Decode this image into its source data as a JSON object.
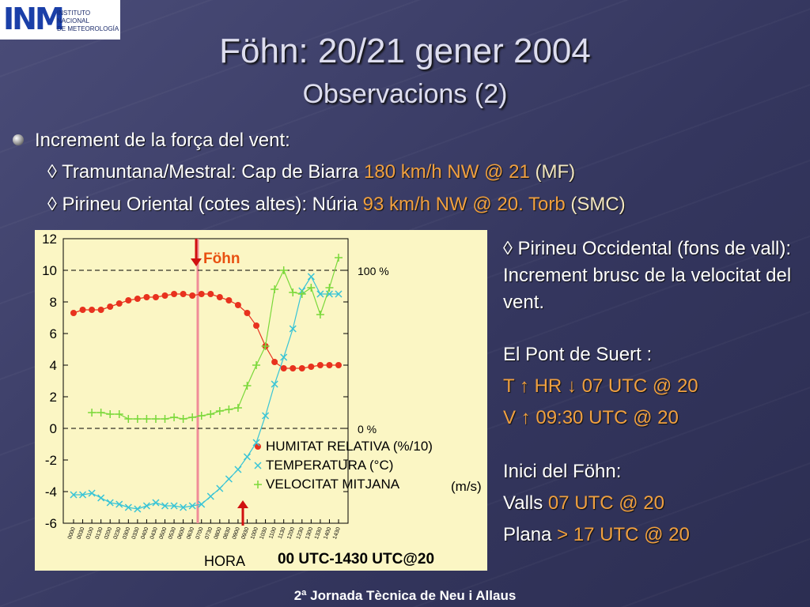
{
  "header": {
    "logo_mark": "INM",
    "logo_text": [
      "INSTITUTO",
      "NACIONAL",
      "DE METEOROLOGÍA"
    ],
    "title": "Föhn: 20/21 gener 2004",
    "subtitle": "Observacions (2)"
  },
  "bullets": {
    "main": "Increment de la força del vent:",
    "items": [
      {
        "lead": "◊ Tramuntana/Mestral: Cap de Biarra ",
        "highlight": "180 km/h NW @ 21",
        "tail": " (MF)"
      },
      {
        "lead": "◊ Pirineu Oriental (cotes altes): Núria ",
        "highlight": "93 km/h NW @ 20. Torb",
        "tail": " (SMC)"
      }
    ]
  },
  "side": {
    "paragraph": "◊ Pirineu Occidental (fons de vall): Increment brusc de la velocitat del vent.",
    "station": "El Pont de Suert :",
    "line1": "T ↑ HR ↓ 07 UTC @ 20",
    "line2": "V ↑ 09:30 UTC @ 20",
    "onset": "Inici del Föhn:",
    "valls_label": "Valls ",
    "valls_value": "07 UTC @ 20",
    "plana_label": "Plana ",
    "plana_value": "> 17 UTC @ 20"
  },
  "footer": "2ª Jornada Tècnica de Neu i Allaus",
  "chart_data": {
    "type": "line",
    "x_label": "HORA",
    "caption": "00 UTC-1430 UTC@20",
    "marker_label": "Föhn",
    "units_note": "(m/s)",
    "categories": [
      "0000",
      "0030",
      "0100",
      "0130",
      "0200",
      "0230",
      "0300",
      "0330",
      "0400",
      "0430",
      "0500",
      "0530",
      "0600",
      "0630",
      "0700",
      "0730",
      "0800",
      "0830",
      "0900",
      "0930",
      "1000",
      "1030",
      "1100",
      "1130",
      "1200",
      "1230",
      "1300",
      "1330",
      "1400",
      "1430"
    ],
    "ylim": [
      -6,
      12
    ],
    "yticks": [
      -6,
      -4,
      -2,
      0,
      2,
      4,
      6,
      8,
      10,
      12
    ],
    "reference_lines": [
      {
        "value": 10,
        "label": "100 %"
      },
      {
        "value": 0,
        "label": "0 %"
      }
    ],
    "series": [
      {
        "name": "HUMITAT RELATIVA (%/10)",
        "color": "#e8321e",
        "marker": "circle",
        "values": [
          7.3,
          7.5,
          7.5,
          7.5,
          7.7,
          7.9,
          8.1,
          8.2,
          8.3,
          8.3,
          8.4,
          8.5,
          8.5,
          8.4,
          8.5,
          8.5,
          8.3,
          8.1,
          7.8,
          7.3,
          6.5,
          5.2,
          4.2,
          3.8,
          3.8,
          3.8,
          3.9,
          4.0,
          4.0,
          4.0
        ]
      },
      {
        "name": "TEMPERATURA (°C)",
        "color": "#38c4d6",
        "marker": "x",
        "values": [
          -4.2,
          -4.2,
          -4.1,
          -4.4,
          -4.7,
          -4.8,
          -5.0,
          -5.1,
          -4.9,
          -4.7,
          -4.9,
          -4.9,
          -5.0,
          -4.9,
          -4.8,
          -4.3,
          -3.8,
          -3.2,
          -2.6,
          -1.8,
          -0.9,
          0.8,
          2.8,
          4.5,
          6.3,
          8.7,
          9.6,
          8.5,
          8.5,
          8.5
        ]
      },
      {
        "name": "VELOCITAT MITJANA",
        "color": "#7ad83a",
        "marker": "plus",
        "values": [
          null,
          null,
          1.0,
          1.0,
          0.9,
          0.9,
          0.6,
          0.6,
          0.6,
          0.6,
          0.6,
          0.7,
          0.6,
          0.7,
          0.8,
          0.9,
          1.1,
          1.2,
          1.3,
          2.7,
          4.0,
          5.2,
          8.8,
          10.0,
          8.6,
          8.5,
          8.9,
          7.2,
          8.9,
          10.8
        ]
      }
    ]
  }
}
